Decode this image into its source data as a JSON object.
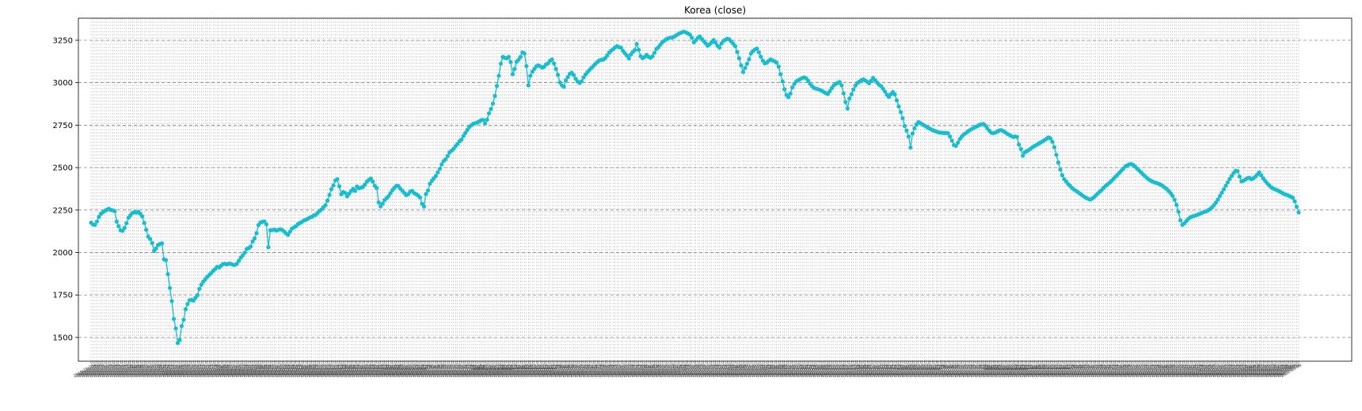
{
  "chart_data": {
    "type": "line",
    "title": "Korea (close)",
    "xlabel": "",
    "ylabel": "",
    "ylim": [
      1360,
      3380
    ],
    "yticks": [
      1500,
      1750,
      2000,
      2250,
      2500,
      2750,
      3000,
      3250
    ],
    "grid": true,
    "legend": "none",
    "series_color": "#17becf",
    "marker": "circle",
    "date_range": [
      "2019-11-01",
      "2022-10-31"
    ],
    "series": [
      {
        "values": [
          2176,
          2165,
          2163,
          2183,
          2210,
          2228,
          2237,
          2245,
          2252,
          2258,
          2251,
          2248,
          2244,
          2182,
          2155,
          2131,
          2128,
          2145,
          2173,
          2205,
          2220,
          2233,
          2238,
          2235,
          2240,
          2228,
          2213,
          2174,
          2134,
          2094,
          2080,
          2056,
          2010,
          2024,
          2044,
          2051,
          2054,
          1960,
          1955,
          1873,
          1791,
          1714,
          1609,
          1553,
          1467,
          1485,
          1567,
          1604,
          1666,
          1697,
          1719,
          1721,
          1717,
          1733,
          1749,
          1786,
          1811,
          1829,
          1843,
          1857,
          1868,
          1879,
          1893,
          1903,
          1916,
          1912,
          1922,
          1932,
          1934,
          1930,
          1935,
          1933,
          1928,
          1927,
          1934,
          1951,
          1970,
          1983,
          1999,
          2021,
          2026,
          2035,
          2065,
          2083,
          2114,
          2162,
          2177,
          2181,
          2183,
          2166,
          2031,
          2131,
          2132,
          2135,
          2129,
          2133,
          2137,
          2133,
          2124,
          2112,
          2104,
          2123,
          2141,
          2148,
          2155,
          2167,
          2174,
          2180,
          2188,
          2193,
          2199,
          2205,
          2210,
          2218,
          2221,
          2233,
          2245,
          2254,
          2267,
          2279,
          2306,
          2339,
          2373,
          2395,
          2424,
          2432,
          2390,
          2343,
          2356,
          2351,
          2331,
          2346,
          2362,
          2375,
          2363,
          2389,
          2378,
          2382,
          2387,
          2400,
          2417,
          2428,
          2436,
          2418,
          2393,
          2380,
          2295,
          2272,
          2288,
          2309,
          2320,
          2332,
          2350,
          2368,
          2381,
          2393,
          2391,
          2376,
          2364,
          2351,
          2338,
          2344,
          2359,
          2363,
          2350,
          2344,
          2336,
          2324,
          2287,
          2271,
          2344,
          2365,
          2405,
          2423,
          2437,
          2451,
          2472,
          2493,
          2519,
          2539,
          2549,
          2569,
          2590,
          2600,
          2610,
          2626,
          2639,
          2655,
          2665,
          2686,
          2704,
          2722,
          2739,
          2749,
          2758,
          2761,
          2765,
          2772,
          2779,
          2781,
          2760,
          2782,
          2820,
          2845,
          2877,
          2922,
          2981,
          3041,
          3112,
          3152,
          3147,
          3144,
          3152,
          3122,
          3050,
          3081,
          3123,
          3135,
          3152,
          3178,
          3172,
          3098,
          2985,
          3041,
          3065,
          3081,
          3096,
          3102,
          3097,
          3089,
          3094,
          3108,
          3114,
          3129,
          3137,
          3113,
          3081,
          3046,
          3002,
          2984,
          2976,
          3014,
          3033,
          3052,
          3059,
          3045,
          3023,
          3007,
          2999,
          3008,
          3031,
          3048,
          3062,
          3075,
          3087,
          3098,
          3111,
          3122,
          3131,
          3135,
          3136,
          3145,
          3160,
          3177,
          3189,
          3197,
          3208,
          3215,
          3209,
          3207,
          3188,
          3173,
          3160,
          3143,
          3166,
          3181,
          3192,
          3228,
          3194,
          3156,
          3144,
          3152,
          3164,
          3152,
          3147,
          3155,
          3176,
          3199,
          3209,
          3224,
          3238,
          3247,
          3256,
          3262,
          3265,
          3266,
          3271,
          3279,
          3286,
          3292,
          3297,
          3301,
          3296,
          3290,
          3283,
          3265,
          3238,
          3250,
          3264,
          3272,
          3258,
          3245,
          3232,
          3218,
          3226,
          3238,
          3251,
          3236,
          3218,
          3207,
          3231,
          3246,
          3253,
          3259,
          3255,
          3242,
          3230,
          3215,
          3181,
          3144,
          3102,
          3063,
          3087,
          3112,
          3138,
          3172,
          3186,
          3195,
          3201,
          3179,
          3153,
          3130,
          3114,
          3118,
          3129,
          3137,
          3131,
          3126,
          3118,
          3095,
          3050,
          3008,
          2961,
          2928,
          2915,
          2936,
          2972,
          2993,
          3008,
          3015,
          3021,
          3027,
          3031,
          3026,
          3012,
          2994,
          2980,
          2969,
          2965,
          2962,
          2958,
          2952,
          2945,
          2939,
          2933,
          2950,
          2968,
          2984,
          2993,
          2999,
          3004,
          2985,
          2937,
          2886,
          2848,
          2907,
          2932,
          2960,
          2983,
          2998,
          3006,
          3014,
          3020,
          3013,
          3005,
          2997,
          3012,
          3028,
          3015,
          3001,
          2988,
          2980,
          2965,
          2948,
          2929,
          2916,
          2932,
          2945,
          2931,
          2896,
          2860,
          2827,
          2791,
          2745,
          2718,
          2683,
          2618,
          2701,
          2732,
          2754,
          2768,
          2762,
          2755,
          2748,
          2741,
          2734,
          2728,
          2722,
          2717,
          2713,
          2708,
          2706,
          2705,
          2704,
          2704,
          2703,
          2683,
          2659,
          2633,
          2628,
          2647,
          2668,
          2683,
          2695,
          2703,
          2712,
          2720,
          2727,
          2734,
          2740,
          2745,
          2751,
          2755,
          2757,
          2747,
          2731,
          2717,
          2705,
          2703,
          2706,
          2712,
          2719,
          2721,
          2715,
          2708,
          2700,
          2693,
          2687,
          2681,
          2684,
          2681,
          2636,
          2609,
          2570,
          2590,
          2597,
          2604,
          2612,
          2621,
          2628,
          2634,
          2641,
          2648,
          2654,
          2662,
          2670,
          2678,
          2672,
          2652,
          2620,
          2575,
          2530,
          2489,
          2455,
          2432,
          2418,
          2403,
          2392,
          2380,
          2371,
          2364,
          2355,
          2347,
          2338,
          2330,
          2323,
          2317,
          2312,
          2316,
          2325,
          2336,
          2347,
          2358,
          2368,
          2381,
          2392,
          2401,
          2411,
          2422,
          2434,
          2446,
          2457,
          2470,
          2482,
          2494,
          2507,
          2513,
          2519,
          2521,
          2516,
          2506,
          2494,
          2483,
          2472,
          2460,
          2449,
          2439,
          2430,
          2423,
          2417,
          2412,
          2409,
          2405,
          2399,
          2392,
          2383,
          2374,
          2363,
          2350,
          2334,
          2311,
          2281,
          2240,
          2190,
          2163,
          2172,
          2186,
          2198,
          2207,
          2212,
          2216,
          2220,
          2224,
          2229,
          2234,
          2239,
          2242,
          2248,
          2256,
          2266,
          2279,
          2294,
          2312,
          2332,
          2352,
          2372,
          2393,
          2413,
          2433,
          2451,
          2468,
          2482,
          2479,
          2447,
          2419,
          2423,
          2430,
          2438,
          2440,
          2432,
          2437,
          2446,
          2459,
          2472,
          2455,
          2437,
          2422,
          2408,
          2396,
          2385,
          2377,
          2372,
          2367,
          2362,
          2355,
          2349,
          2343,
          2339,
          2334,
          2329,
          2323,
          2302,
          2270,
          2236
        ]
      }
    ]
  }
}
